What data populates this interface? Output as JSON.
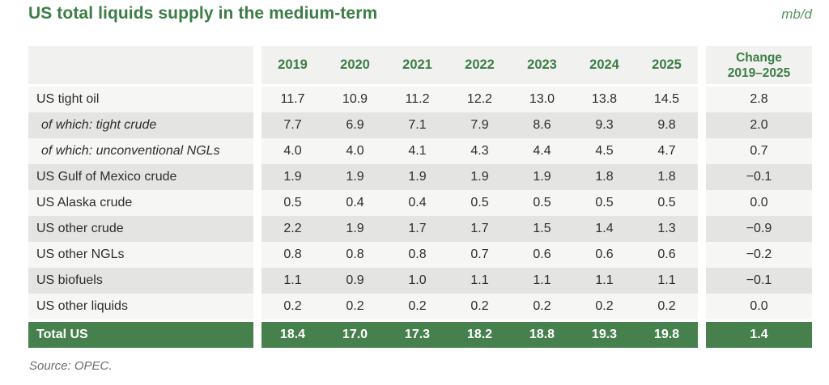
{
  "colors": {
    "accent_green": "#3b7d45",
    "total_green": "#45804d",
    "unit_green": "#57965f",
    "header_bg": "#f1f1ef",
    "row_light": "#f6f6f4",
    "row_dark": "#e4e4e2",
    "text_dark": "#2d2d2d",
    "source_gray": "#6e6e6e"
  },
  "chart_data": {
    "type": "table",
    "title": "US total liquids supply in the medium-term",
    "unit": "mb/d",
    "source": "Source: OPEC.",
    "columns": [
      "2019",
      "2020",
      "2021",
      "2022",
      "2023",
      "2024",
      "2025"
    ],
    "change_header_line1": "Change",
    "change_header_line2": "2019–2025",
    "rows": [
      {
        "label": "US tight oil",
        "italic": false,
        "values": [
          "11.7",
          "10.9",
          "11.2",
          "12.2",
          "13.0",
          "13.8",
          "14.5"
        ],
        "change": "2.8"
      },
      {
        "label": "of which: tight crude",
        "italic": true,
        "values": [
          "7.7",
          "6.9",
          "7.1",
          "7.9",
          "8.6",
          "9.3",
          "9.8"
        ],
        "change": "2.0"
      },
      {
        "label": "of which: unconventional NGLs",
        "italic": true,
        "values": [
          "4.0",
          "4.0",
          "4.1",
          "4.3",
          "4.4",
          "4.5",
          "4.7"
        ],
        "change": "0.7"
      },
      {
        "label": "US Gulf of Mexico crude",
        "italic": false,
        "values": [
          "1.9",
          "1.9",
          "1.9",
          "1.9",
          "1.9",
          "1.8",
          "1.8"
        ],
        "change": "−0.1"
      },
      {
        "label": "US Alaska crude",
        "italic": false,
        "values": [
          "0.5",
          "0.4",
          "0.4",
          "0.5",
          "0.5",
          "0.5",
          "0.5"
        ],
        "change": "0.0"
      },
      {
        "label": "US other crude",
        "italic": false,
        "values": [
          "2.2",
          "1.9",
          "1.7",
          "1.7",
          "1.5",
          "1.4",
          "1.3"
        ],
        "change": "−0.9"
      },
      {
        "label": "US other NGLs",
        "italic": false,
        "values": [
          "0.8",
          "0.8",
          "0.8",
          "0.7",
          "0.6",
          "0.6",
          "0.6"
        ],
        "change": "−0.2"
      },
      {
        "label": "US biofuels",
        "italic": false,
        "values": [
          "1.1",
          "0.9",
          "1.0",
          "1.1",
          "1.1",
          "1.1",
          "1.1"
        ],
        "change": "−0.1"
      },
      {
        "label": "US other liquids",
        "italic": false,
        "values": [
          "0.2",
          "0.2",
          "0.2",
          "0.2",
          "0.2",
          "0.2",
          "0.2"
        ],
        "change": "0.0"
      }
    ],
    "total": {
      "label": "Total US",
      "values": [
        "18.4",
        "17.0",
        "17.3",
        "18.2",
        "18.8",
        "19.3",
        "19.8"
      ],
      "change": "1.4"
    }
  }
}
